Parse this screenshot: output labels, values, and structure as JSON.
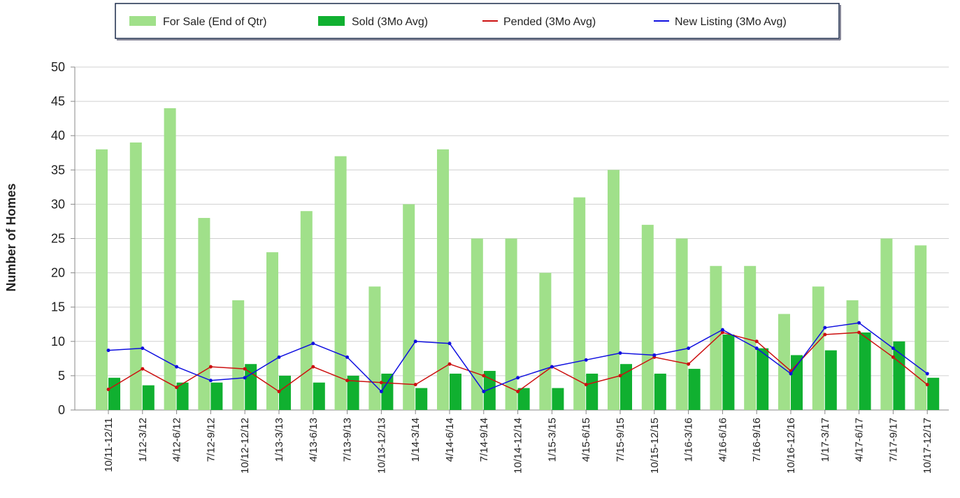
{
  "chart_data": {
    "type": "bar+line",
    "y_label": "Number of Homes",
    "categories": [
      "10/11-12/11",
      "1/12-3/12",
      "4/12-6/12",
      "7/12-9/12",
      "10/12-12/12",
      "1/13-3/13",
      "4/13-6/13",
      "7/13-9/13",
      "10/13-12/13",
      "1/14-3/14",
      "4/14-6/14",
      "7/14-9/14",
      "10/14-12/14",
      "1/15-3/15",
      "4/15-6/15",
      "7/15-9/15",
      "10/15-12/15",
      "1/16-3/16",
      "4/16-6/16",
      "7/16-9/16",
      "10/16-12/16",
      "1/17-3/17",
      "4/17-6/17",
      "7/17-9/17",
      "10/17-12/17"
    ],
    "series": [
      {
        "name": "For Sale (End of Qtr)",
        "kind": "bar",
        "color": "#a0e08a",
        "values": [
          38,
          39,
          44,
          28,
          16,
          23,
          29,
          37,
          18,
          30,
          38,
          25,
          25,
          20,
          31,
          35,
          27,
          25,
          21,
          21,
          14,
          18,
          16,
          25,
          24
        ]
      },
      {
        "name": "Sold (3Mo Avg)",
        "kind": "bar",
        "color": "#10b030",
        "values": [
          4.7,
          3.6,
          4,
          4,
          6.7,
          5,
          4,
          5,
          5.3,
          3.2,
          5.3,
          5.7,
          3.2,
          3.2,
          5.3,
          6.7,
          5.3,
          6,
          11,
          9,
          8,
          8.7,
          11.3,
          10,
          4.7
        ]
      },
      {
        "name": "Pended (3Mo Avg)",
        "kind": "line",
        "color": "#cc1010",
        "values": [
          3,
          6,
          3.3,
          6.3,
          6,
          2.7,
          6.3,
          4.3,
          4,
          3.7,
          6.7,
          5,
          2.7,
          6.3,
          3.7,
          5,
          7.7,
          6.7,
          11.3,
          10,
          5.7,
          11,
          11.3,
          7.7,
          3.7
        ]
      },
      {
        "name": "New Listing (3Mo Avg)",
        "kind": "line",
        "color": "#1010e0",
        "values": [
          8.7,
          9,
          6.3,
          4.3,
          4.7,
          7.7,
          9.7,
          7.7,
          2.7,
          10,
          9.7,
          2.7,
          4.7,
          6.3,
          7.3,
          8.3,
          8,
          9,
          11.7,
          9,
          5.3,
          12,
          12.7,
          9,
          5.3
        ]
      }
    ],
    "ylim": [
      0,
      50
    ],
    "yticks": [
      0,
      5,
      10,
      15,
      20,
      25,
      30,
      35,
      40,
      45,
      50
    ],
    "grid": true
  }
}
